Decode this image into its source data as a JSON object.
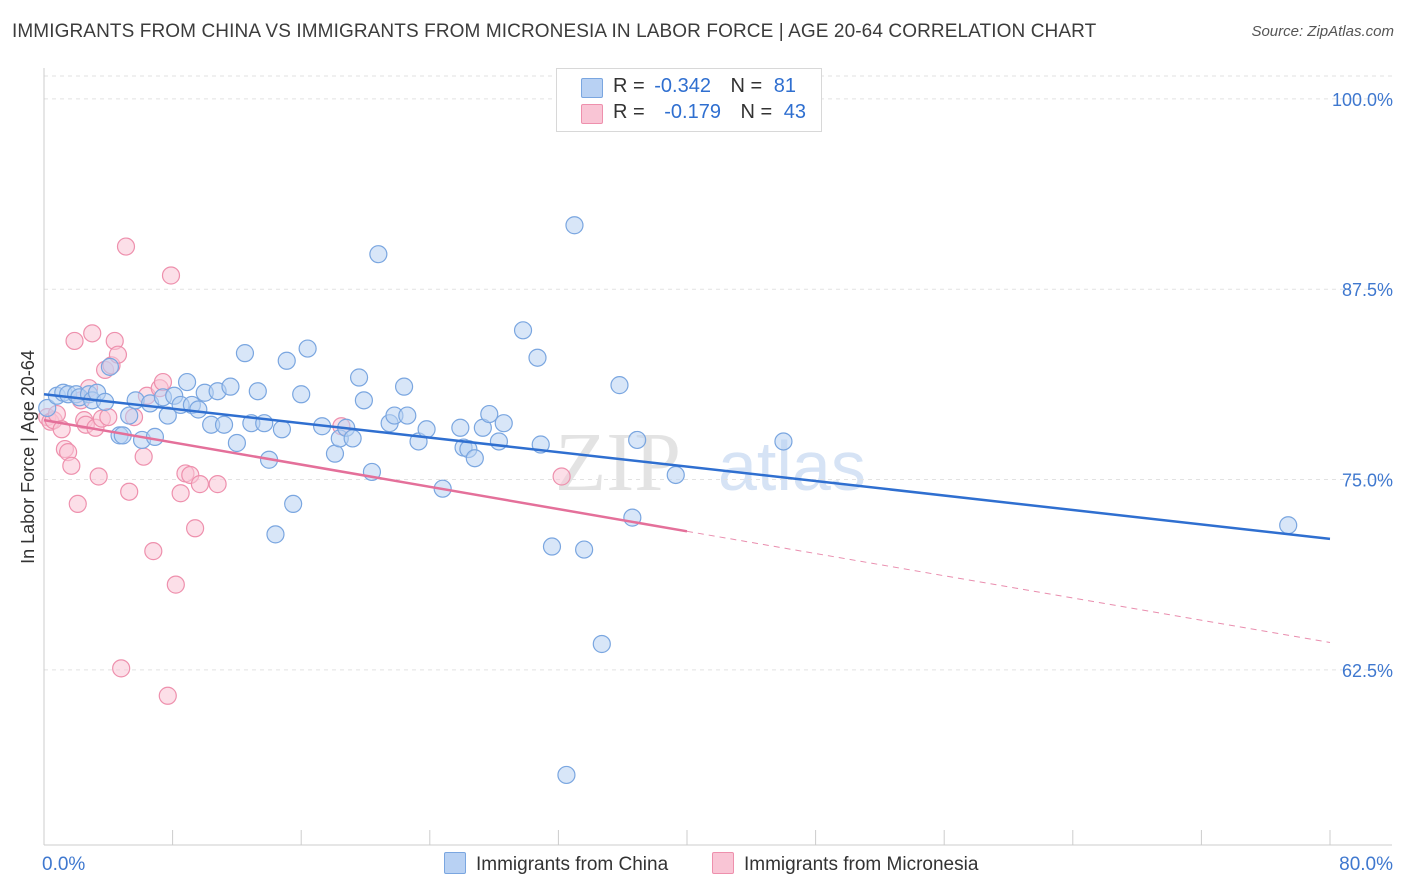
{
  "title": "IMMIGRANTS FROM CHINA VS IMMIGRANTS FROM MICRONESIA IN LABOR FORCE | AGE 20-64 CORRELATION CHART",
  "source": "Source: ZipAtlas.com",
  "watermark": {
    "zip": "ZIP",
    "atlas": "atlas"
  },
  "legend": {
    "r_label": "R =",
    "n_label": "N =",
    "china": {
      "r": "-0.342",
      "n": "81"
    },
    "micronesia": {
      "r": "-0.179",
      "n": "43"
    }
  },
  "colors": {
    "china_fill": "#b8d1f3",
    "china_stroke": "#7aa6e0",
    "china_line": "#2f6fd0",
    "micronesia_fill": "#f9c5d5",
    "micronesia_stroke": "#ee90ad",
    "micronesia_line": "#e4709a",
    "axis_label": "#3f78cf"
  },
  "chart_data": {
    "type": "scatter",
    "title": "IMMIGRANTS FROM CHINA VS IMMIGRANTS FROM MICRONESIA IN LABOR FORCE | AGE 20-64 CORRELATION CHART",
    "xlabel": "",
    "ylabel": "In Labor Force | Age 20-64",
    "xlim": [
      0,
      80
    ],
    "ylim": [
      51.0,
      101.5
    ],
    "x_tick_labels": [
      "0.0%",
      "80.0%"
    ],
    "y_ticks": [
      62.5,
      75.0,
      87.5,
      100.0
    ],
    "y_tick_labels": [
      "62.5%",
      "75.0%",
      "87.5%",
      "100.0%"
    ],
    "grid": "horizontal dashed",
    "legend_position": "top-center",
    "series": [
      {
        "name": "Immigrants from China",
        "r": -0.342,
        "n": 81,
        "trend": {
          "x": [
            0.0,
            80.0
          ],
          "y": [
            80.6,
            71.1
          ]
        },
        "points": [
          [
            0.2,
            79.7
          ],
          [
            0.8,
            80.5
          ],
          [
            1.2,
            80.7
          ],
          [
            1.5,
            80.6
          ],
          [
            2.0,
            80.6
          ],
          [
            2.2,
            80.4
          ],
          [
            2.8,
            80.6
          ],
          [
            3.0,
            80.2
          ],
          [
            3.3,
            80.7
          ],
          [
            3.8,
            80.1
          ],
          [
            4.1,
            82.4
          ],
          [
            4.7,
            77.9
          ],
          [
            4.9,
            77.9
          ],
          [
            5.3,
            79.2
          ],
          [
            5.7,
            80.2
          ],
          [
            6.1,
            77.6
          ],
          [
            6.6,
            80.0
          ],
          [
            6.9,
            77.8
          ],
          [
            7.4,
            80.4
          ],
          [
            7.7,
            79.2
          ],
          [
            8.1,
            80.5
          ],
          [
            8.5,
            79.9
          ],
          [
            8.9,
            81.4
          ],
          [
            9.2,
            79.9
          ],
          [
            9.6,
            79.6
          ],
          [
            10.0,
            80.7
          ],
          [
            10.4,
            78.6
          ],
          [
            10.8,
            80.8
          ],
          [
            11.2,
            78.6
          ],
          [
            11.6,
            81.1
          ],
          [
            12.0,
            77.4
          ],
          [
            12.5,
            83.3
          ],
          [
            12.9,
            78.7
          ],
          [
            13.3,
            80.8
          ],
          [
            13.7,
            78.7
          ],
          [
            14.0,
            76.3
          ],
          [
            14.4,
            71.4
          ],
          [
            14.8,
            78.3
          ],
          [
            15.1,
            82.8
          ],
          [
            15.5,
            73.4
          ],
          [
            16.0,
            80.6
          ],
          [
            16.4,
            83.6
          ],
          [
            17.3,
            78.5
          ],
          [
            18.1,
            76.7
          ],
          [
            18.4,
            77.7
          ],
          [
            18.8,
            78.4
          ],
          [
            19.2,
            77.7
          ],
          [
            19.6,
            81.7
          ],
          [
            19.9,
            80.2
          ],
          [
            20.4,
            75.5
          ],
          [
            20.8,
            89.8
          ],
          [
            21.5,
            78.7
          ],
          [
            21.8,
            79.2
          ],
          [
            22.4,
            81.1
          ],
          [
            22.6,
            79.2
          ],
          [
            23.3,
            77.5
          ],
          [
            23.8,
            78.3
          ],
          [
            24.8,
            74.4
          ],
          [
            25.9,
            78.4
          ],
          [
            26.1,
            77.1
          ],
          [
            26.4,
            77.0
          ],
          [
            26.8,
            76.4
          ],
          [
            27.3,
            78.4
          ],
          [
            27.7,
            79.3
          ],
          [
            28.3,
            77.5
          ],
          [
            28.6,
            78.7
          ],
          [
            29.8,
            84.8
          ],
          [
            30.7,
            83.0
          ],
          [
            30.9,
            77.3
          ],
          [
            31.6,
            70.6
          ],
          [
            32.5,
            55.6
          ],
          [
            33.0,
            91.7
          ],
          [
            33.6,
            70.4
          ],
          [
            34.7,
            64.2
          ],
          [
            35.8,
            81.2
          ],
          [
            36.6,
            72.5
          ],
          [
            36.9,
            77.6
          ],
          [
            39.3,
            75.3
          ],
          [
            46.0,
            77.5
          ],
          [
            77.4,
            72.0
          ]
        ]
      },
      {
        "name": "Immigrants from Micronesia",
        "r": -0.179,
        "n": 43,
        "trend": {
          "x": [
            0.0,
            40.0
          ],
          "y": [
            78.9,
            71.6
          ]
        },
        "trend_dashed": {
          "x": [
            40.0,
            80.0
          ],
          "y": [
            71.6,
            64.3
          ]
        },
        "points": [
          [
            0.2,
            79.1
          ],
          [
            0.4,
            78.8
          ],
          [
            0.6,
            78.9
          ],
          [
            0.8,
            79.3
          ],
          [
            1.1,
            78.3
          ],
          [
            1.3,
            77.0
          ],
          [
            1.5,
            76.8
          ],
          [
            1.7,
            75.9
          ],
          [
            1.9,
            84.1
          ],
          [
            2.1,
            73.4
          ],
          [
            2.3,
            80.2
          ],
          [
            2.5,
            78.9
          ],
          [
            2.6,
            78.6
          ],
          [
            2.8,
            81.0
          ],
          [
            3.0,
            84.6
          ],
          [
            3.2,
            78.4
          ],
          [
            3.4,
            75.2
          ],
          [
            3.6,
            79.0
          ],
          [
            3.8,
            82.2
          ],
          [
            4.0,
            79.1
          ],
          [
            4.2,
            82.5
          ],
          [
            4.4,
            84.1
          ],
          [
            4.6,
            83.2
          ],
          [
            4.8,
            62.6
          ],
          [
            5.1,
            90.3
          ],
          [
            5.3,
            74.2
          ],
          [
            5.6,
            79.1
          ],
          [
            6.2,
            76.5
          ],
          [
            6.4,
            80.5
          ],
          [
            6.8,
            70.3
          ],
          [
            7.2,
            81.0
          ],
          [
            7.4,
            81.4
          ],
          [
            7.7,
            60.8
          ],
          [
            7.9,
            88.4
          ],
          [
            8.2,
            68.1
          ],
          [
            8.5,
            74.1
          ],
          [
            8.8,
            75.4
          ],
          [
            9.1,
            75.3
          ],
          [
            9.4,
            71.8
          ],
          [
            9.7,
            74.7
          ],
          [
            10.8,
            74.7
          ],
          [
            18.5,
            78.5
          ],
          [
            32.2,
            75.2
          ]
        ]
      }
    ]
  }
}
